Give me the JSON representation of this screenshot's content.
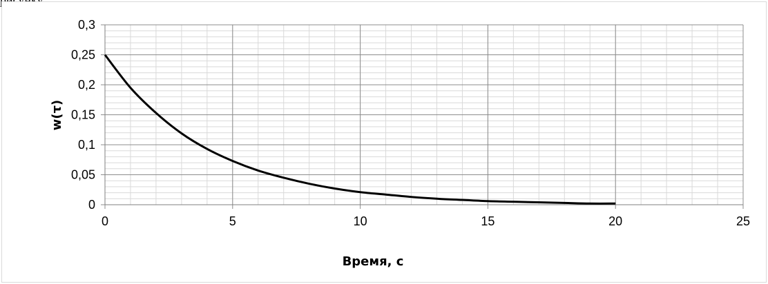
{
  "caption": "рисунку",
  "chart_data": {
    "type": "line",
    "xlabel": "Время, с",
    "ylabel": "w(τ)",
    "xlim": [
      0,
      25
    ],
    "ylim": [
      0,
      0.3
    ],
    "x_ticks": [
      "0",
      "5",
      "10",
      "15",
      "20",
      "25"
    ],
    "y_ticks": [
      "0",
      "0,05",
      "0,1",
      "0,15",
      "0,2",
      "0,25",
      "0,3"
    ],
    "grid": true,
    "legend": "none",
    "series": [
      {
        "color": "#000000",
        "x": [
          0,
          1,
          2,
          3,
          4,
          5,
          6,
          7,
          8,
          9,
          10,
          11,
          12,
          13,
          14,
          15,
          16,
          17,
          18,
          19,
          20
        ],
        "y": [
          0.25,
          0.195,
          0.153,
          0.119,
          0.093,
          0.073,
          0.057,
          0.045,
          0.035,
          0.027,
          0.021,
          0.017,
          0.013,
          0.01,
          0.008,
          0.006,
          0.005,
          0.004,
          0.003,
          0.002,
          0.002
        ]
      }
    ]
  }
}
